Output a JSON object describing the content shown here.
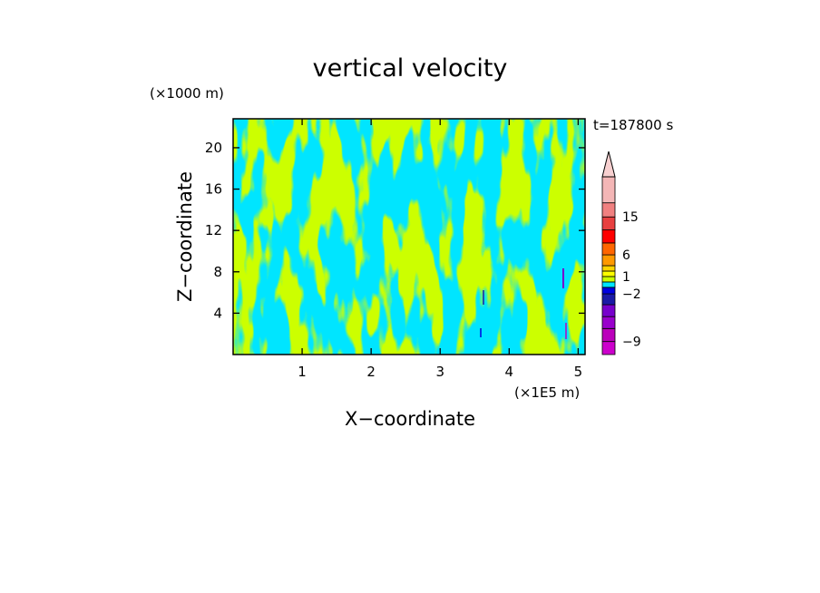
{
  "chart_data": {
    "type": "heatmap",
    "title": "vertical velocity",
    "xlabel": "X−coordinate",
    "ylabel": "Z−coordinate",
    "x_unit": "(×1E5 m)",
    "y_unit": "(×1000 m)",
    "time_label": "t=187800 s",
    "xlim": [
      0,
      5.1
    ],
    "ylim": [
      0,
      22.8
    ],
    "x_ticks": [
      "1",
      "2",
      "3",
      "4",
      "5"
    ],
    "y_ticks": [
      "4",
      "8",
      "12",
      "16",
      "20"
    ],
    "x_tick_values": [
      1,
      2,
      3,
      4,
      5
    ],
    "y_tick_values": [
      4,
      8,
      12,
      16,
      20
    ],
    "colorbar": {
      "labels": [
        "15",
        "6",
        "1",
        "−2",
        "−9"
      ],
      "label_values": [
        15,
        6,
        1,
        -2,
        -9
      ],
      "colors": [
        "#cc00cc",
        "#bb00bb",
        "#9900cc",
        "#7700cc",
        "#1a1aa6",
        "#0000e0",
        "#00e5ff",
        "#ccff00",
        "#ffff00",
        "#ffd400",
        "#ff9900",
        "#ff6600",
        "#ff0000",
        "#e84040",
        "#f08080",
        "#f4b6b6"
      ],
      "bounds": [
        -11,
        -9,
        -7,
        -5,
        -3,
        -2,
        -1,
        0,
        1,
        2,
        4,
        6,
        8,
        11,
        15,
        19,
        25
      ],
      "extend_max": true
    },
    "dominant_range": {
      "min": -1,
      "max": 1
    },
    "colors": {
      "positive_field": "#ccff00",
      "negative_field": "#00e5ff",
      "frame": "#000000"
    }
  }
}
